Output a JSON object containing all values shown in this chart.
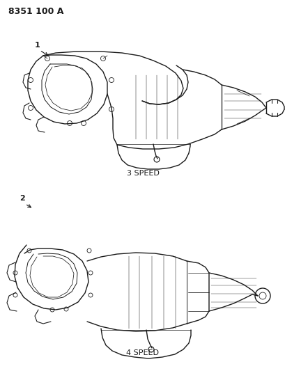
{
  "title_code": "8351 100 A",
  "label1": "1",
  "label2": "2",
  "caption1": "3 SPEED",
  "caption2": "4 SPEED",
  "bg_color": "#ffffff",
  "line_color": "#1a1a1a",
  "text_color": "#1a1a1a",
  "title_fontsize": 9,
  "caption_fontsize": 8,
  "label_fontsize": 8,
  "fig_width": 4.1,
  "fig_height": 5.33,
  "dpi": 100
}
